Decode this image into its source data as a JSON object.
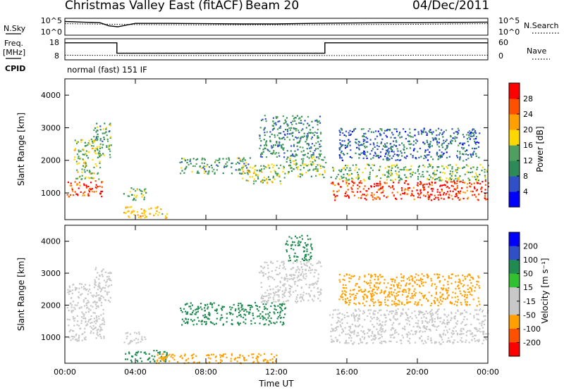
{
  "header": {
    "station": "Christmas Valley East (fitACF)",
    "beam": "Beam 20",
    "date": "04/Dec/2011"
  },
  "left_labels": {
    "nsky": "N.Sky",
    "freq_line1": "Freq.",
    "freq_line2": "[MHz]",
    "cpid": "CPID"
  },
  "right_labels": {
    "nsearch": "N.Search",
    "nave": "Nave"
  },
  "mode_text": "normal (fast) 151 IF",
  "colors": {
    "frame": "#000000",
    "power_scale": [
      "#0000ff",
      "#3050c8",
      "#2e8b57",
      "#4fa060",
      "#ffd700",
      "#ffa000",
      "#ff5000",
      "#ff0000"
    ],
    "velocity_scale": [
      "#ff0000",
      "#ff5000",
      "#ffa000",
      "#c8c8c8",
      "#c8c8c8",
      "#30c030",
      "#208a50",
      "#3050c8",
      "#0000ff"
    ]
  },
  "chart_data": [
    {
      "type": "line",
      "panel": "noise",
      "x_unit": "hours UT",
      "xlim": [
        0,
        24
      ],
      "left_axis": {
        "ticks": [
          "10^5",
          "10^0"
        ],
        "scale": "log"
      },
      "right_axis": {
        "ticks": [
          "10^5",
          "10^0"
        ],
        "scale": "log"
      },
      "series": [
        {
          "label": "N.Sky",
          "x": [
            0,
            1,
            2,
            2.5,
            3,
            4,
            6,
            8,
            10,
            12,
            14,
            16,
            18,
            20,
            22,
            24
          ],
          "y_log10": [
            4.2,
            4.0,
            3.8,
            2.8,
            2.5,
            3.6,
            3.6,
            3.5,
            3.4,
            3.4,
            3.6,
            3.7,
            3.8,
            3.8,
            3.9,
            4.0
          ]
        },
        {
          "label": "N.Search",
          "x": [
            0,
            4,
            8,
            12,
            16,
            20,
            24
          ],
          "y_log10": [
            3.5,
            3.2,
            3.1,
            3.1,
            3.2,
            3.3,
            3.5
          ]
        }
      ]
    },
    {
      "type": "line",
      "panel": "frequency",
      "xlim": [
        0,
        24
      ],
      "left_axis": {
        "ticks": [
          "18",
          "8"
        ],
        "range": [
          8,
          18
        ]
      },
      "right_axis": {
        "ticks": [
          "60",
          "0"
        ],
        "range": [
          0,
          60
        ]
      },
      "series": [
        {
          "label": "Freq.",
          "x": [
            0,
            2.95,
            2.95,
            14.75,
            14.75,
            24
          ],
          "y": [
            16.3,
            16.3,
            11.0,
            11.0,
            16.3,
            16.3
          ]
        },
        {
          "label": "Nave",
          "x": [
            0,
            4,
            8,
            12,
            16,
            20,
            24
          ],
          "y": [
            12,
            11,
            11,
            11,
            11,
            12,
            12
          ]
        }
      ]
    },
    {
      "type": "heatmap",
      "panel": "power",
      "xlabel": "",
      "ylabel": "Slant Range [km]",
      "xlim": [
        0,
        24
      ],
      "ylim": [
        180,
        4500
      ],
      "yticks": [
        1000,
        2000,
        3000,
        4000
      ],
      "colorbar": {
        "label": "Power [dB]",
        "ticks": [
          4,
          8,
          12,
          16,
          20,
          24,
          28
        ],
        "range": [
          0,
          32
        ]
      },
      "regions": [
        {
          "t0": 0.1,
          "t1": 2.2,
          "r0": 900,
          "r1": 1400,
          "value": 27
        },
        {
          "t0": 0.5,
          "t1": 2.0,
          "r0": 1400,
          "r1": 2700,
          "value": 16
        },
        {
          "t0": 1.6,
          "t1": 2.6,
          "r0": 2100,
          "r1": 3200,
          "value": 12
        },
        {
          "t0": 3.3,
          "t1": 4.6,
          "r0": 800,
          "r1": 1200,
          "value": 14
        },
        {
          "t0": 3.3,
          "t1": 5.8,
          "r0": 250,
          "r1": 600,
          "value": 20
        },
        {
          "t0": 6.5,
          "t1": 10.5,
          "r0": 1600,
          "r1": 2100,
          "value": 12
        },
        {
          "t0": 10.0,
          "t1": 12.5,
          "r0": 1300,
          "r1": 1900,
          "value": 16
        },
        {
          "t0": 11.0,
          "t1": 14.5,
          "r0": 2100,
          "r1": 3400,
          "value": 10
        },
        {
          "t0": 12.5,
          "t1": 14.8,
          "r0": 1500,
          "r1": 2200,
          "value": 14
        },
        {
          "t0": 15.0,
          "t1": 24.0,
          "r0": 800,
          "r1": 1400,
          "value": 28
        },
        {
          "t0": 15.0,
          "t1": 24.0,
          "r0": 1400,
          "r1": 1900,
          "value": 14
        },
        {
          "t0": 15.5,
          "t1": 23.5,
          "r0": 2000,
          "r1": 3000,
          "value": 8
        }
      ]
    },
    {
      "type": "heatmap",
      "panel": "velocity",
      "xlabel": "Time UT",
      "ylabel": "Slant Range [km]",
      "xlim": [
        0,
        24
      ],
      "ylim": [
        180,
        4500
      ],
      "yticks": [
        1000,
        2000,
        3000,
        4000
      ],
      "xtick_labels": [
        "00:00",
        "04:00",
        "08:00",
        "12:00",
        "16:00",
        "20:00",
        "00:00"
      ],
      "xticks": [
        0,
        4,
        8,
        12,
        16,
        20,
        24
      ],
      "colorbar": {
        "label": "Velocity [m s⁻¹]",
        "ticks": [
          200,
          100,
          50,
          15,
          -15,
          -50,
          -100,
          -200
        ]
      },
      "regions": [
        {
          "t0": 0.1,
          "t1": 2.2,
          "r0": 900,
          "r1": 2700,
          "value": 0
        },
        {
          "t0": 1.6,
          "t1": 2.6,
          "r0": 2100,
          "r1": 3200,
          "value": -20
        },
        {
          "t0": 3.3,
          "t1": 5.8,
          "r0": 250,
          "r1": 600,
          "value": 70
        },
        {
          "t0": 3.3,
          "t1": 4.6,
          "r0": 800,
          "r1": 1200,
          "value": 0
        },
        {
          "t0": 6.5,
          "t1": 12.5,
          "r0": 1400,
          "r1": 2100,
          "value": 60
        },
        {
          "t0": 11.0,
          "t1": 14.5,
          "r0": 2100,
          "r1": 3400,
          "value": 0
        },
        {
          "t0": 12.5,
          "t1": 14.0,
          "r0": 3400,
          "r1": 4200,
          "value": 60
        },
        {
          "t0": 15.0,
          "t1": 24.0,
          "r0": 800,
          "r1": 1900,
          "value": 0
        },
        {
          "t0": 15.5,
          "t1": 23.5,
          "r0": 2000,
          "r1": 3000,
          "value": -40
        },
        {
          "t0": 5.0,
          "t1": 12.0,
          "r0": 200,
          "r1": 500,
          "value": -40
        }
      ]
    }
  ]
}
